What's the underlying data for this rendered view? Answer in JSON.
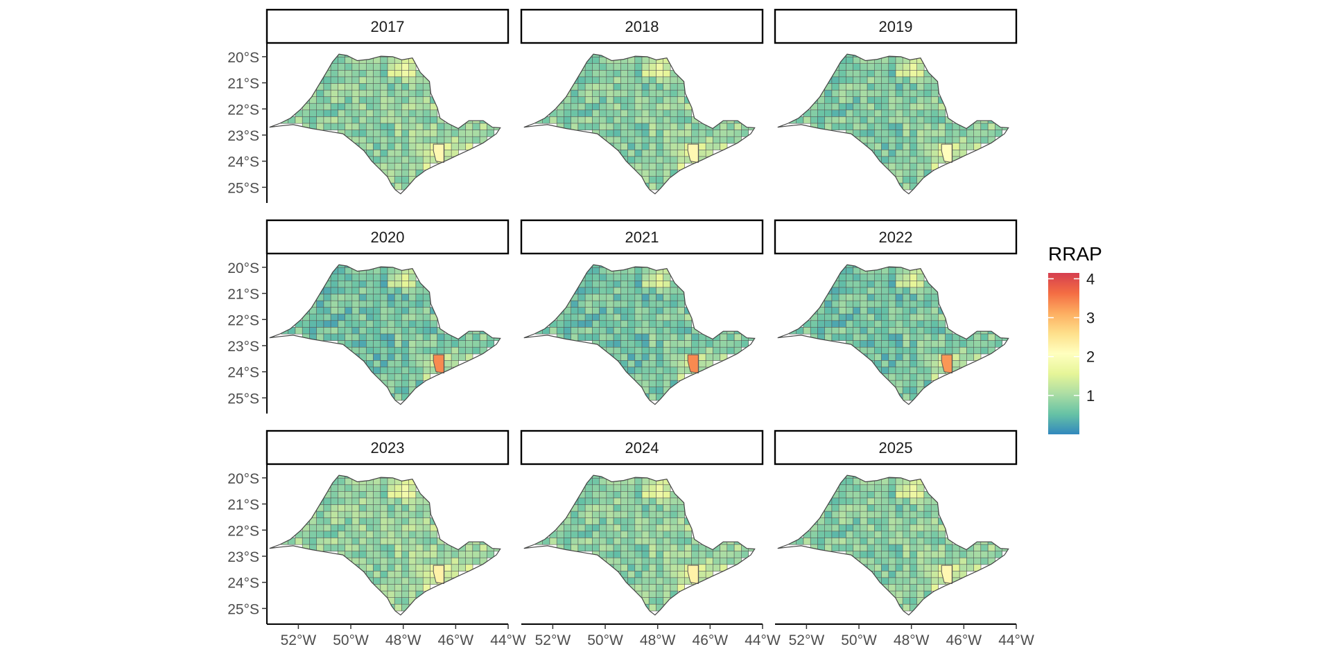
{
  "facets": [
    {
      "label": "2017",
      "fill_shift": 0.1,
      "hotspot": 2.2
    },
    {
      "label": "2018",
      "fill_shift": 0.05,
      "hotspot": 2.2
    },
    {
      "label": "2019",
      "fill_shift": 0.0,
      "hotspot": 2.1
    },
    {
      "label": "2020",
      "fill_shift": -0.12,
      "hotspot": 3.4
    },
    {
      "label": "2021",
      "fill_shift": -0.1,
      "hotspot": 3.4
    },
    {
      "label": "2022",
      "fill_shift": -0.1,
      "hotspot": 3.3
    },
    {
      "label": "2023",
      "fill_shift": 0.15,
      "hotspot": 2.3
    },
    {
      "label": "2024",
      "fill_shift": 0.08,
      "hotspot": 2.3
    },
    {
      "label": "2025",
      "fill_shift": 0.05,
      "hotspot": 2.2
    }
  ],
  "axes": {
    "y_ticks": [
      "20°S",
      "21°S",
      "22°S",
      "23°S",
      "24°S",
      "25°S"
    ],
    "y_values": [
      -20,
      -21,
      -22,
      -23,
      -24,
      -25
    ],
    "x_ticks": [
      "52°W",
      "50°W",
      "48°W",
      "46°W",
      "44°W"
    ],
    "x_values": [
      -52,
      -50,
      -48,
      -46,
      -44
    ],
    "x_range": [
      -53.2,
      -44.0
    ],
    "y_range": [
      -25.6,
      -19.5
    ]
  },
  "legend": {
    "title": "RRAP",
    "ticks": [
      "1",
      "2",
      "3",
      "4"
    ],
    "tick_values": [
      1,
      2,
      3,
      4
    ],
    "range": [
      0,
      4.15
    ],
    "colors": [
      "#3288bd",
      "#66c2a5",
      "#abdda4",
      "#e6f598",
      "#ffffbf",
      "#fee08b",
      "#fdae61",
      "#f46d43",
      "#d53e4f"
    ]
  },
  "colors": {
    "border": "#555555",
    "axis": "#000000",
    "tick_text": "#4d4d4d"
  }
}
